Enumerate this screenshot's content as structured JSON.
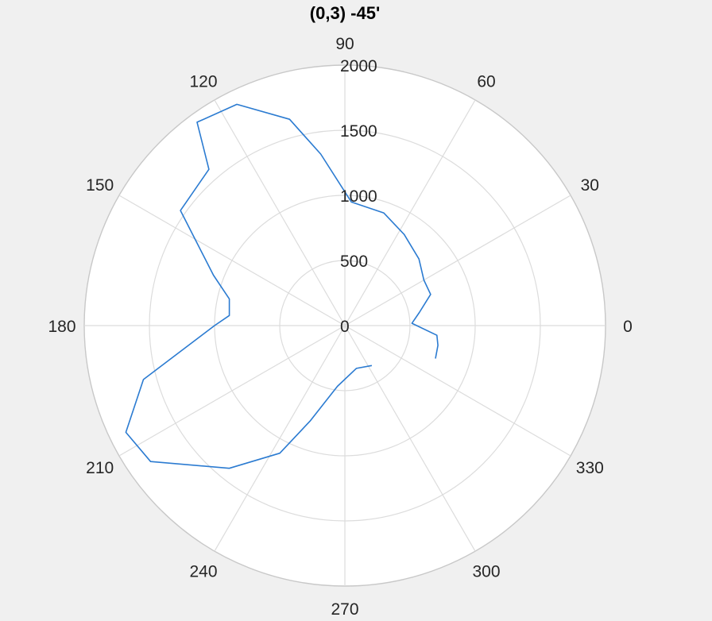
{
  "chart_data": {
    "type": "polar-line",
    "title": "(0,3) -45'",
    "theta_ticks": [
      0,
      30,
      60,
      90,
      120,
      150,
      180,
      210,
      240,
      270,
      300,
      330
    ],
    "r_ticks": [
      0,
      500,
      1000,
      1500,
      2000
    ],
    "rlim": [
      0,
      2000
    ],
    "grid": true,
    "series": [
      {
        "color": "#2b7bd1",
        "points": [
          {
            "theta": 340,
            "r": 740
          },
          {
            "theta": 348,
            "r": 730
          },
          {
            "theta": 354,
            "r": 710
          },
          {
            "theta": 2,
            "r": 515
          },
          {
            "theta": 10,
            "r": 580
          },
          {
            "theta": 20,
            "r": 700
          },
          {
            "theta": 30,
            "r": 700
          },
          {
            "theta": 42,
            "r": 765
          },
          {
            "theta": 57,
            "r": 835
          },
          {
            "theta": 71,
            "r": 915
          },
          {
            "theta": 87,
            "r": 950
          },
          {
            "theta": 98,
            "r": 1330
          },
          {
            "theta": 105,
            "r": 1640
          },
          {
            "theta": 116,
            "r": 1890
          },
          {
            "theta": 126,
            "r": 1930
          },
          {
            "theta": 131,
            "r": 1590
          },
          {
            "theta": 145,
            "r": 1540
          },
          {
            "theta": 159,
            "r": 1080
          },
          {
            "theta": 167,
            "r": 910
          },
          {
            "theta": 175,
            "r": 890
          },
          {
            "theta": 180,
            "r": 1000
          },
          {
            "theta": 195,
            "r": 1600
          },
          {
            "theta": 206,
            "r": 1870
          },
          {
            "theta": 215,
            "r": 1820
          },
          {
            "theta": 231,
            "r": 1410
          },
          {
            "theta": 243,
            "r": 1100
          },
          {
            "theta": 250,
            "r": 780
          },
          {
            "theta": 263,
            "r": 470
          },
          {
            "theta": 285,
            "r": 340
          },
          {
            "theta": 304,
            "r": 370
          }
        ]
      }
    ]
  }
}
